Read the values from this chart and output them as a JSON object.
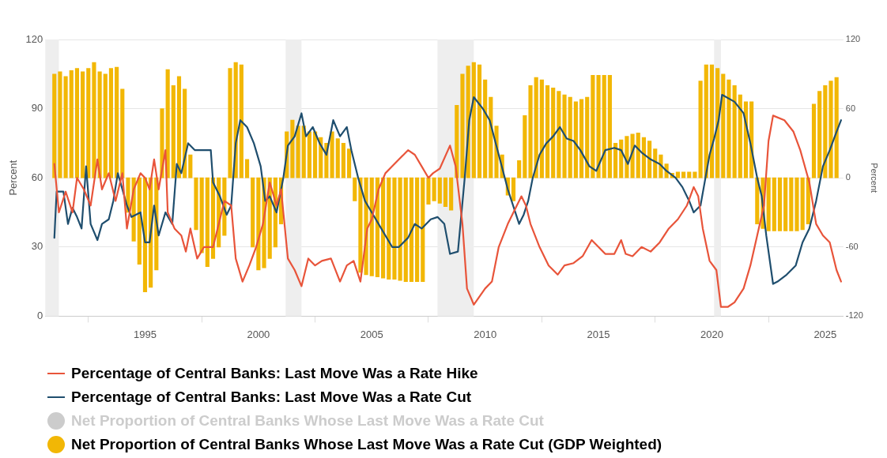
{
  "chart_data": {
    "type": "line",
    "ylabel": "Percent",
    "y2label": "Percent",
    "xlim": [
      1990.6,
      2025.8
    ],
    "xticks": [
      1995,
      2000,
      2005,
      2010,
      2015,
      2020,
      2025
    ],
    "ylim": [
      0,
      120
    ],
    "yticks": [
      0,
      30,
      60,
      90,
      120
    ],
    "y2lim": [
      -120,
      120
    ],
    "y2ticks": [
      -120,
      -60,
      0,
      60,
      120
    ],
    "grid": "y",
    "legend": "bottom",
    "marker": "none",
    "line_style": "solid",
    "bands": [
      {
        "axis": "x",
        "from": 1990.6,
        "to": 1991.2,
        "color": "#eeeeee"
      },
      {
        "axis": "x",
        "from": 2001.2,
        "to": 2001.9,
        "color": "#eeeeee"
      },
      {
        "axis": "x",
        "from": 2007.9,
        "to": 2009.5,
        "color": "#eeeeee"
      },
      {
        "axis": "x",
        "from": 2020.1,
        "to": 2020.4,
        "color": "#eeeeee"
      }
    ],
    "series": [
      {
        "name": "Percentage of Central Banks: Last Move Was a Rate Hike",
        "color": "#e8543a",
        "x": [
          1991.0,
          1991.2,
          1991.5,
          1991.8,
          1992.0,
          1992.3,
          1992.6,
          1992.9,
          1993.1,
          1993.4,
          1993.7,
          1994.0,
          1994.2,
          1994.5,
          1994.8,
          1995.0,
          1995.2,
          1995.4,
          1995.6,
          1995.9,
          1996.0,
          1996.3,
          1996.6,
          1996.8,
          1997.0,
          1997.3,
          1997.6,
          1997.9,
          1998.0,
          1998.2,
          1998.5,
          1998.8,
          1999.0,
          1999.3,
          1999.6,
          1999.9,
          2000.2,
          2000.5,
          2000.8,
          2001.0,
          2001.3,
          2001.6,
          2001.9,
          2002.2,
          2002.5,
          2002.8,
          2003.2,
          2003.6,
          2003.9,
          2004.2,
          2004.5,
          2004.8,
          2005.0,
          2005.3,
          2005.6,
          2005.9,
          2006.2,
          2006.6,
          2006.9,
          2007.2,
          2007.5,
          2007.7,
          2008.0,
          2008.45,
          2008.7,
          2009.0,
          2009.2,
          2009.5,
          2010.0,
          2010.3,
          2010.6,
          2011.0,
          2011.3,
          2011.6,
          2011.8,
          2012.0,
          2012.4,
          2012.8,
          2013.2,
          2013.5,
          2013.9,
          2014.3,
          2014.7,
          2015.0,
          2015.3,
          2015.7,
          2016.0,
          2016.2,
          2016.5,
          2016.9,
          2017.3,
          2017.7,
          2018.1,
          2018.5,
          2018.9,
          2019.2,
          2019.4,
          2019.6,
          2019.9,
          2020.2,
          2020.4,
          2020.7,
          2021.0,
          2021.4,
          2021.7,
          2022.0,
          2022.3,
          2022.5,
          2022.7,
          2023.2,
          2023.6,
          2023.9,
          2024.3,
          2024.6,
          2024.9,
          2025.2,
          2025.5,
          2025.7
        ],
        "values": [
          66,
          45,
          54,
          45,
          60,
          55,
          48,
          68,
          55,
          62,
          50,
          62,
          38,
          55,
          62,
          60,
          55,
          68,
          55,
          72,
          45,
          38,
          35,
          28,
          38,
          25,
          30,
          30,
          30,
          38,
          50,
          48,
          25,
          15,
          22,
          30,
          40,
          58,
          48,
          55,
          25,
          20,
          13,
          25,
          22,
          24,
          25,
          15,
          22,
          24,
          15,
          38,
          42,
          55,
          62,
          65,
          68,
          72,
          70,
          65,
          60,
          62,
          64,
          74,
          65,
          40,
          12,
          5,
          12,
          15,
          30,
          40,
          46,
          52,
          48,
          40,
          30,
          22,
          18,
          22,
          23,
          26,
          33,
          30,
          27,
          27,
          33,
          27,
          26,
          30,
          28,
          32,
          38,
          42,
          48,
          56,
          52,
          38,
          24,
          20,
          4,
          4,
          6,
          12,
          22,
          35,
          48,
          76,
          87,
          85,
          80,
          72,
          58,
          40,
          35,
          32,
          20,
          15
        ]
      },
      {
        "name": "Percentage of Central Banks: Last Move Was a Rate Cut",
        "color": "#1f4e6e",
        "x": [
          1991.0,
          1991.1,
          1991.4,
          1991.6,
          1991.8,
          1992.0,
          1992.2,
          1992.4,
          1992.6,
          1992.9,
          1993.1,
          1993.4,
          1993.6,
          1993.8,
          1994.0,
          1994.2,
          1994.4,
          1994.8,
          1995.0,
          1995.2,
          1995.4,
          1995.6,
          1995.9,
          1996.2,
          1996.4,
          1996.6,
          1996.9,
          1997.2,
          1997.5,
          1997.9,
          1998.0,
          1998.3,
          1998.6,
          1998.8,
          1999.0,
          1999.2,
          1999.5,
          1999.8,
          2000.1,
          2000.3,
          2000.5,
          2000.8,
          2001.1,
          2001.3,
          2001.6,
          2001.9,
          2002.1,
          2002.4,
          2002.7,
          2003.0,
          2003.3,
          2003.6,
          2003.9,
          2004.1,
          2004.4,
          2004.7,
          2005.0,
          2005.3,
          2005.6,
          2005.9,
          2006.2,
          2006.6,
          2006.9,
          2007.2,
          2007.6,
          2007.9,
          2008.2,
          2008.45,
          2008.8,
          2009.1,
          2009.3,
          2009.5,
          2009.9,
          2010.2,
          2010.6,
          2011.0,
          2011.3,
          2011.5,
          2011.7,
          2011.9,
          2012.1,
          2012.4,
          2012.7,
          2013.0,
          2013.3,
          2013.6,
          2013.9,
          2014.2,
          2014.6,
          2014.9,
          2015.3,
          2015.7,
          2016.0,
          2016.3,
          2016.6,
          2016.9,
          2017.3,
          2017.7,
          2018.0,
          2018.4,
          2018.7,
          2019.0,
          2019.2,
          2019.5,
          2019.9,
          2020.1,
          2020.3,
          2020.45,
          2021.0,
          2021.4,
          2021.7,
          2022.0,
          2022.2,
          2022.4,
          2022.7,
          2022.9,
          2023.3,
          2023.7,
          2024.0,
          2024.3,
          2024.6,
          2024.9,
          2025.2,
          2025.5,
          2025.7
        ],
        "values": [
          34,
          54,
          54,
          40,
          47,
          43,
          38,
          65,
          40,
          33,
          40,
          42,
          50,
          62,
          55,
          48,
          43,
          45,
          32,
          32,
          48,
          35,
          45,
          40,
          66,
          62,
          75,
          72,
          72,
          72,
          58,
          52,
          44,
          48,
          75,
          85,
          82,
          75,
          65,
          50,
          52,
          45,
          60,
          74,
          78,
          88,
          78,
          82,
          75,
          70,
          85,
          78,
          82,
          72,
          60,
          50,
          45,
          40,
          35,
          30,
          30,
          34,
          40,
          38,
          42,
          43,
          40,
          27,
          28,
          60,
          85,
          95,
          90,
          85,
          70,
          55,
          46,
          40,
          44,
          50,
          60,
          70,
          75,
          78,
          82,
          77,
          76,
          72,
          65,
          63,
          72,
          73,
          72,
          66,
          74,
          71,
          68,
          66,
          63,
          60,
          56,
          50,
          45,
          48,
          70,
          77,
          85,
          96,
          93,
          88,
          75,
          60,
          52,
          35,
          14,
          15,
          18,
          22,
          32,
          38,
          50,
          65,
          72,
          80,
          85
        ]
      },
      {
        "name": "Net Proportion of Central Banks Whose Last Move Was a Rate Cut",
        "type": "bar",
        "axis": "y2",
        "color": "#cccccc"
      },
      {
        "name": "Net Proportion of Central Banks Whose Last Move Was a Rate Cut (GDP Weighted)",
        "type": "bar",
        "axis": "y2",
        "color": "#f2b705",
        "x": [
          1991.0,
          1991.25,
          1991.5,
          1991.75,
          1992.0,
          1992.25,
          1992.5,
          1992.75,
          1993.0,
          1993.25,
          1993.5,
          1993.75,
          1994.0,
          1994.25,
          1994.5,
          1994.75,
          1995.0,
          1995.25,
          1995.5,
          1995.75,
          1996.0,
          1996.25,
          1996.5,
          1996.75,
          1997.0,
          1997.25,
          1997.5,
          1997.75,
          1998.0,
          1998.25,
          1998.5,
          1998.75,
          1999.0,
          1999.25,
          1999.5,
          1999.75,
          2000.0,
          2000.25,
          2000.5,
          2000.75,
          2001.0,
          2001.25,
          2001.5,
          2001.75,
          2002.0,
          2002.25,
          2002.5,
          2002.75,
          2003.0,
          2003.25,
          2003.5,
          2003.75,
          2004.0,
          2004.25,
          2004.5,
          2004.75,
          2005.0,
          2005.25,
          2005.5,
          2005.75,
          2006.0,
          2006.25,
          2006.5,
          2006.75,
          2007.0,
          2007.25,
          2007.5,
          2007.75,
          2008.0,
          2008.25,
          2008.5,
          2008.75,
          2009.0,
          2009.25,
          2009.5,
          2009.75,
          2010.0,
          2010.25,
          2010.5,
          2010.75,
          2011.0,
          2011.25,
          2011.5,
          2011.75,
          2012.0,
          2012.25,
          2012.5,
          2012.75,
          2013.0,
          2013.25,
          2013.5,
          2013.75,
          2014.0,
          2014.25,
          2014.5,
          2014.75,
          2015.0,
          2015.25,
          2015.5,
          2015.75,
          2016.0,
          2016.25,
          2016.5,
          2016.75,
          2017.0,
          2017.25,
          2017.5,
          2017.75,
          2018.0,
          2018.25,
          2018.5,
          2018.75,
          2019.0,
          2019.25,
          2019.5,
          2019.75,
          2020.0,
          2020.25,
          2020.5,
          2020.75,
          2021.0,
          2021.25,
          2021.5,
          2021.75,
          2022.0,
          2022.25,
          2022.5,
          2022.75,
          2023.0,
          2023.25,
          2023.5,
          2023.75,
          2024.0,
          2024.25,
          2024.5,
          2024.75,
          2025.0,
          2025.25,
          2025.5
        ],
        "values": [
          90,
          92,
          88,
          93,
          95,
          92,
          95,
          100,
          92,
          90,
          95,
          96,
          77,
          -30,
          -55,
          -75,
          -99,
          -95,
          -80,
          60,
          94,
          80,
          88,
          77,
          20,
          -45,
          -65,
          -77,
          -70,
          -60,
          -50,
          95,
          100,
          98,
          16,
          -60,
          -80,
          -78,
          -70,
          -60,
          -40,
          40,
          50,
          45,
          45,
          40,
          40,
          35,
          30,
          40,
          34,
          30,
          25,
          -20,
          -82,
          -84,
          -85,
          -86,
          -87,
          -88,
          -88,
          -89,
          -90,
          -90,
          -90,
          -90,
          -23,
          -20,
          -22,
          -25,
          -28,
          63,
          90,
          97,
          100,
          98,
          85,
          70,
          45,
          20,
          -15,
          -20,
          15,
          54,
          80,
          87,
          85,
          80,
          78,
          75,
          72,
          70,
          66,
          68,
          70,
          89,
          89,
          89,
          89,
          30,
          33,
          36,
          38,
          39,
          35,
          32,
          25,
          20,
          12,
          4,
          5,
          5,
          5,
          5,
          84,
          98,
          98,
          95,
          90,
          85,
          80,
          72,
          66,
          66,
          -40,
          -44,
          -46,
          -46,
          -46,
          -46,
          -46,
          -46,
          -45,
          -40,
          64,
          75,
          80,
          84,
          87
        ]
      }
    ]
  }
}
